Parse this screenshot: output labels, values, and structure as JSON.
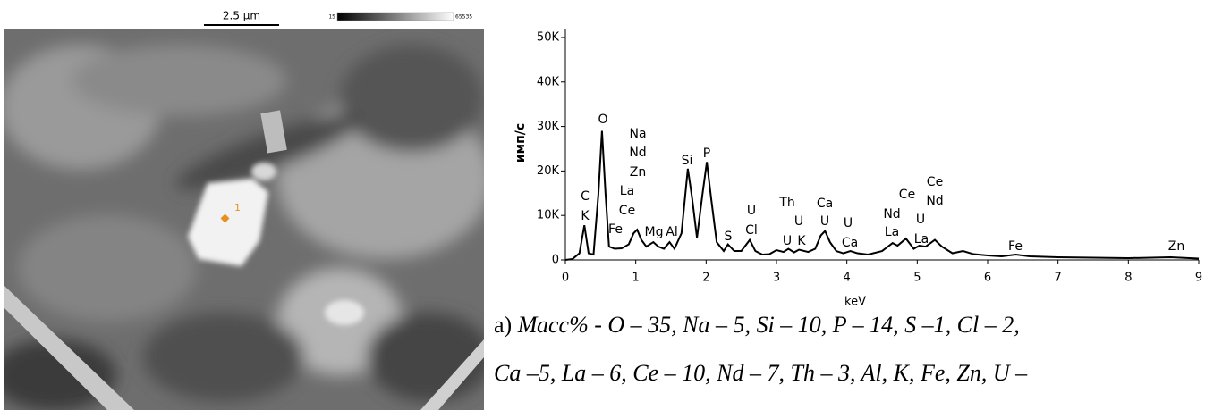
{
  "image": {
    "scale_bar": "2.5 µm",
    "colorbar_min": "15",
    "colorbar_max": "65535",
    "point_label": "1"
  },
  "chart_data": {
    "type": "line",
    "xlabel": "keV",
    "ylabel": "имп/с",
    "color": "#000000",
    "x": [
      0,
      0.1,
      0.2,
      0.27,
      0.33,
      0.4,
      0.47,
      0.52,
      0.57,
      0.62,
      0.7,
      0.8,
      0.9,
      0.97,
      1.02,
      1.08,
      1.15,
      1.25,
      1.32,
      1.4,
      1.48,
      1.55,
      1.65,
      1.74,
      1.8,
      1.87,
      1.95,
      2.01,
      2.07,
      2.15,
      2.25,
      2.31,
      2.4,
      2.5,
      2.62,
      2.7,
      2.8,
      2.9,
      3.0,
      3.1,
      3.17,
      3.25,
      3.32,
      3.45,
      3.55,
      3.63,
      3.69,
      3.76,
      3.85,
      3.95,
      4.05,
      4.15,
      4.3,
      4.5,
      4.65,
      4.72,
      4.84,
      4.95,
      5.03,
      5.12,
      5.25,
      5.35,
      5.5,
      5.65,
      5.8,
      6.0,
      6.2,
      6.4,
      6.6,
      7,
      7.5,
      8,
      8.6,
      9
    ],
    "values": [
      0,
      200,
      1500,
      7800,
      1500,
      1200,
      15000,
      29000,
      15000,
      3000,
      2500,
      2600,
      3500,
      6000,
      6800,
      4500,
      3000,
      4000,
      3000,
      2500,
      4000,
      2500,
      6000,
      20500,
      14000,
      5000,
      15000,
      22000,
      14000,
      4000,
      2000,
      3500,
      2000,
      2000,
      4500,
      2000,
      1200,
      1300,
      2200,
      1800,
      2500,
      1700,
      2300,
      1800,
      2500,
      5500,
      6500,
      4000,
      2000,
      1500,
      2000,
      1500,
      1200,
      2000,
      3800,
      3200,
      4800,
      2500,
      3200,
      3000,
      4500,
      3000,
      1500,
      2000,
      1300,
      1000,
      800,
      1200,
      800,
      600,
      500,
      400,
      600,
      300
    ],
    "xlim": [
      0,
      9
    ],
    "xticks": [
      0,
      1,
      2,
      3,
      4,
      5,
      6,
      7,
      8,
      9
    ],
    "ylim": [
      0,
      52000
    ],
    "yticks": [
      0,
      {
        "value": 10000,
        "label": "10K"
      },
      {
        "value": 20000,
        "label": "20K"
      },
      {
        "value": 30000,
        "label": "30K"
      },
      {
        "value": 40000,
        "label": "40K"
      },
      {
        "value": 50000,
        "label": "50K"
      }
    ],
    "annotations": [
      "C",
      "K",
      "O",
      "Fe",
      "Na",
      "Nd",
      "Zn",
      "La",
      "Ce",
      "Mg",
      "Al",
      "Si",
      "P",
      "S",
      "U",
      "Cl",
      "Th",
      "U",
      "U",
      "K",
      "Ca",
      "U",
      "U",
      "Ca",
      "Nd",
      "La",
      "Ce",
      "U",
      "La",
      "Ce",
      "Nd",
      "Fe",
      "Zn"
    ]
  },
  "caption": {
    "label": "а) ",
    "lines": [
      "Масс% - O – 35, Na – 5, Si – 10, P – 14, S –1, Cl – 2,",
      "Ca –5, La – 6, Ce – 10, Nd – 7, Th – 3, Al, K, Fe, Zn, U –"
    ]
  }
}
